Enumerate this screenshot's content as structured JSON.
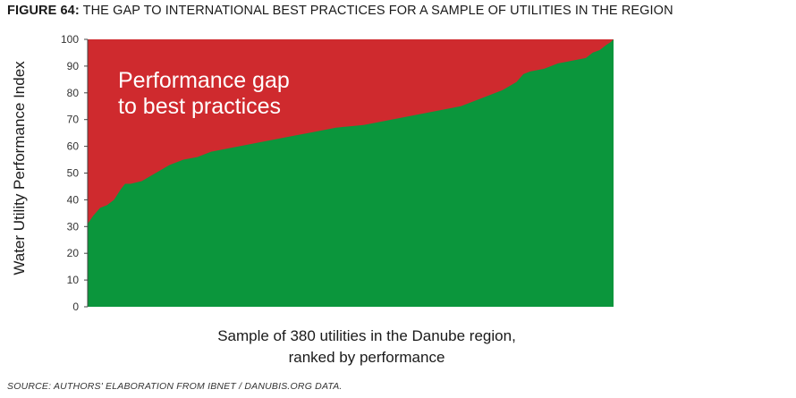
{
  "figure": {
    "label": "FIGURE 64:",
    "title": "THE GAP TO INTERNATIONAL BEST PRACTICES FOR A SAMPLE OF UTILITIES IN THE REGION",
    "source": "SOURCE: AUTHORS' ELABORATION FROM IBNET / DANUBIS.ORG DATA."
  },
  "chart_data": {
    "type": "area",
    "ylabel": "Water Utility Performance Index",
    "xlabel_lines": [
      "Sample of 380 utilities in the Danube region,",
      "ranked by performance"
    ],
    "ylim": [
      0,
      100
    ],
    "yticks": [
      "0",
      "10",
      "20",
      "30",
      "40",
      "50",
      "60",
      "70",
      "80",
      "90",
      "100"
    ],
    "xlim": [
      1,
      380
    ],
    "grid": false,
    "annotation_lines": [
      "Performance gap",
      "to best practices"
    ],
    "colors": {
      "performance": "#0b963c",
      "gap": "#cf2a2e"
    },
    "series": [
      {
        "x": [
          1,
          5,
          10,
          15,
          20,
          25,
          28,
          32,
          40,
          50,
          60,
          70,
          80,
          90,
          100,
          110,
          120,
          130,
          140,
          150,
          160,
          170,
          180,
          190,
          200,
          210,
          220,
          230,
          240,
          250,
          260,
          270,
          280,
          290,
          300,
          310,
          315,
          320,
          330,
          340,
          350,
          360,
          365,
          370,
          375,
          378,
          380
        ],
        "values": [
          31,
          34,
          37,
          38,
          40,
          44,
          46,
          46,
          47,
          50,
          53,
          55,
          56,
          58,
          59,
          60,
          61,
          62,
          63,
          64,
          65,
          66,
          67,
          67.5,
          68,
          69,
          70,
          71,
          72,
          73,
          74,
          75,
          77,
          79,
          81,
          84,
          87,
          88,
          89,
          91,
          92,
          93,
          95,
          96,
          98,
          99,
          100
        ]
      }
    ]
  }
}
